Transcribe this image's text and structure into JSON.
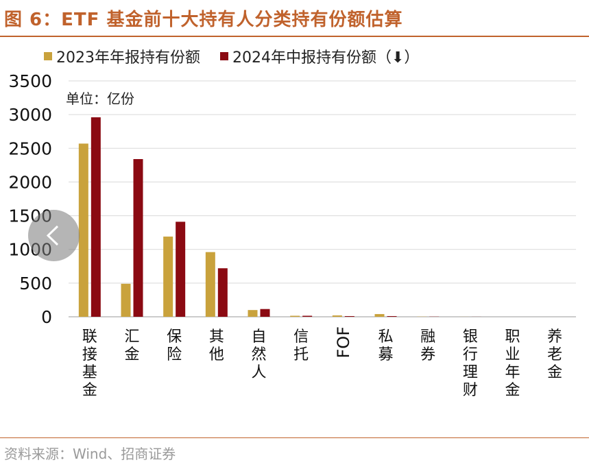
{
  "figure_title": "图 6：ETF 基金前十大持有人分类持有份额估算",
  "unit_label": "单位：亿份",
  "source_text": "资料来源：Wind、招商证券",
  "colors": {
    "series_2023": "#c9a23c",
    "series_2024": "#8b0a12",
    "title": "#c0622c",
    "grid": "#d9d9d9"
  },
  "navigation": {
    "prev_icon": "chevron-left-icon"
  },
  "chart_data": {
    "type": "bar",
    "title": "",
    "xlabel": "",
    "ylabel": "",
    "ylim": [
      0,
      3500
    ],
    "yticks": [
      "0",
      "500",
      "1000",
      "1500",
      "2000",
      "2500",
      "3000",
      "3500"
    ],
    "grid": true,
    "legend_position": "top-left",
    "categories": [
      "联接基金",
      "汇金",
      "保险",
      "其他",
      "自然人",
      "信托",
      "FOF",
      "私募",
      "融券",
      "银行理财",
      "职业年金",
      "养老金"
    ],
    "series": [
      {
        "name": "2023年年报持有份额",
        "values": [
          2570,
          490,
          1190,
          960,
          100,
          15,
          20,
          40,
          3,
          1,
          0,
          0
        ]
      },
      {
        "name": "2024年中报持有份额（⬇）",
        "values": [
          2960,
          2340,
          1410,
          720,
          115,
          15,
          10,
          10,
          3,
          1,
          0,
          0
        ]
      }
    ]
  }
}
